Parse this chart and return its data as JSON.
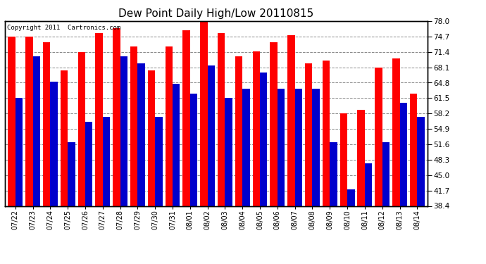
{
  "title": "Dew Point Daily High/Low 20110815",
  "copyright": "Copyright 2011  Cartronics.com",
  "dates": [
    "07/22",
    "07/23",
    "07/24",
    "07/25",
    "07/26",
    "07/27",
    "07/28",
    "07/29",
    "07/30",
    "07/31",
    "08/01",
    "08/02",
    "08/03",
    "08/04",
    "08/05",
    "08/06",
    "08/07",
    "08/08",
    "08/09",
    "08/10",
    "08/11",
    "08/12",
    "08/13",
    "08/14"
  ],
  "highs": [
    74.7,
    74.7,
    73.5,
    67.5,
    71.4,
    75.5,
    76.5,
    72.5,
    67.5,
    72.5,
    76.0,
    78.0,
    75.5,
    70.5,
    71.5,
    73.5,
    75.0,
    69.0,
    69.5,
    58.2,
    59.0,
    68.0,
    70.0,
    62.5
  ],
  "lows": [
    61.5,
    70.5,
    65.0,
    52.0,
    56.5,
    57.5,
    70.5,
    69.0,
    57.5,
    64.5,
    62.5,
    68.5,
    61.5,
    63.5,
    67.0,
    63.5,
    63.5,
    63.5,
    52.0,
    42.0,
    47.5,
    52.0,
    60.5,
    57.5
  ],
  "high_color": "#ff0000",
  "low_color": "#0000cc",
  "bg_color": "#ffffff",
  "plot_bg_color": "#ffffff",
  "grid_color": "#888888",
  "ymin": 38.4,
  "ymax": 78.0,
  "yticks": [
    38.4,
    41.7,
    45.0,
    48.3,
    51.6,
    54.9,
    58.2,
    61.5,
    64.8,
    68.1,
    71.4,
    74.7,
    78.0
  ],
  "bar_width": 0.42,
  "figsize": [
    6.9,
    3.75
  ],
  "dpi": 100
}
